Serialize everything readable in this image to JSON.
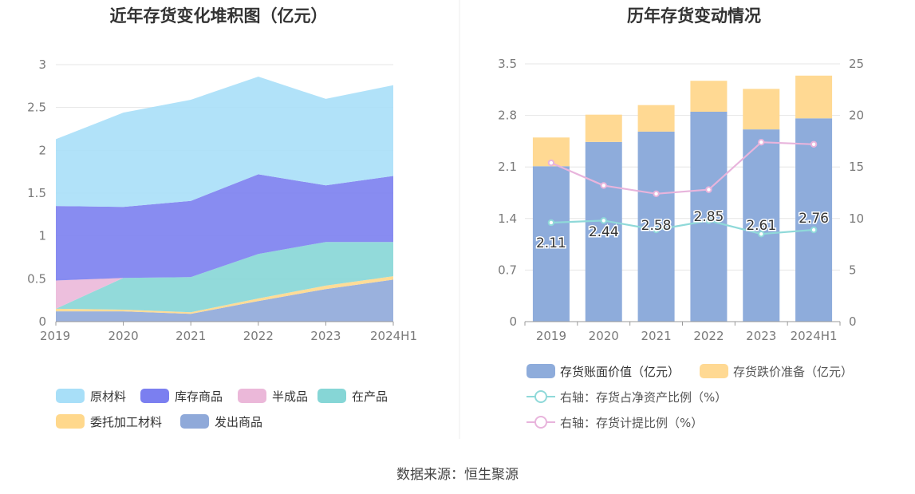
{
  "source_text": "数据来源：恒生聚源",
  "chart_data": [
    {
      "type": "area",
      "stacked": true,
      "title": "近年存货变化堆积图（亿元）",
      "categories": [
        "2019",
        "2020",
        "2021",
        "2022",
        "2023",
        "2024H1"
      ],
      "y_ticks": [
        "0",
        "0.5",
        "1",
        "1.5",
        "2",
        "2.5",
        "3"
      ],
      "ylim": [
        0,
        3
      ],
      "grid": true,
      "legend_position": "bottom",
      "series": [
        {
          "name": "发出商品",
          "color": "#8fa9d9",
          "values": [
            0.12,
            0.12,
            0.09,
            0.24,
            0.38,
            0.49
          ]
        },
        {
          "name": "委托加工材料",
          "color": "#ffd88c",
          "values": [
            0.03,
            0.02,
            0.02,
            0.03,
            0.04,
            0.04
          ]
        },
        {
          "name": "在产品",
          "color": "#86d6d6",
          "values": [
            0.0,
            0.37,
            0.41,
            0.52,
            0.51,
            0.4
          ]
        },
        {
          "name": "半成品",
          "color": "#ebb8d9",
          "values": [
            0.33,
            0.0,
            0.0,
            0.0,
            0.0,
            0.0
          ]
        },
        {
          "name": "库存商品",
          "color": "#7b7ff0",
          "values": [
            0.87,
            0.83,
            0.89,
            0.93,
            0.66,
            0.77
          ]
        },
        {
          "name": "原材料",
          "color": "#a8dff8",
          "values": [
            0.78,
            1.1,
            1.18,
            1.14,
            1.01,
            1.06
          ]
        }
      ],
      "legend_order": [
        "原材料",
        "库存商品",
        "半成品",
        "在产品",
        "委托加工材料",
        "发出商品"
      ]
    },
    {
      "type": "bar",
      "stacked": true,
      "title": "历年存货变动情况",
      "categories": [
        "2019",
        "2020",
        "2021",
        "2022",
        "2023",
        "2024H1"
      ],
      "y_ticks_left": [
        "0",
        "0.7",
        "1.4",
        "2.1",
        "2.8",
        "3.5"
      ],
      "ylim_left": [
        0,
        3.5
      ],
      "y_ticks_right": [
        "0",
        "5",
        "10",
        "15",
        "20",
        "25"
      ],
      "ylim_right": [
        0,
        25
      ],
      "grid": true,
      "legend_position": "bottom",
      "series": [
        {
          "name": "存货账面价值（亿元）",
          "axis": "left",
          "kind": "bar",
          "color": "#8eacdb",
          "values": [
            2.11,
            2.44,
            2.58,
            2.85,
            2.61,
            2.76
          ],
          "labels": [
            "2.11",
            "2.44",
            "2.58",
            "2.85",
            "2.61",
            "2.76"
          ]
        },
        {
          "name": "存货跌价准备（亿元）",
          "axis": "left",
          "kind": "bar",
          "color": "#ffd993",
          "values": [
            0.39,
            0.37,
            0.36,
            0.42,
            0.55,
            0.58
          ]
        },
        {
          "name": "右轴：存货占净资产比例（%）",
          "axis": "right",
          "kind": "line",
          "color": "#8fd9d9",
          "values": [
            9.6,
            9.8,
            8.9,
            9.8,
            8.5,
            8.9
          ]
        },
        {
          "name": "右轴：存货计提比例（%）",
          "axis": "right",
          "kind": "line",
          "color": "#e8b4dc",
          "values": [
            15.4,
            13.2,
            12.4,
            12.8,
            17.4,
            17.2
          ]
        }
      ]
    }
  ]
}
